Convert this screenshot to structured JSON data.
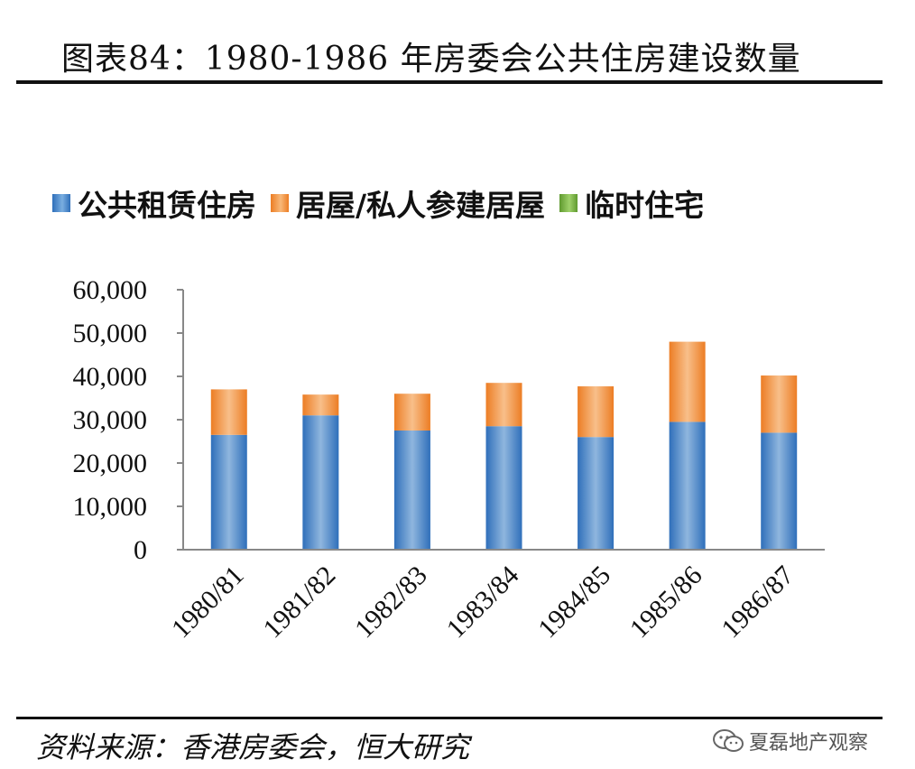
{
  "title": "图表84：1980-1986 年房委会公共住房建设数量",
  "source": "资料来源：香港房委会，恒大研究",
  "watermark": "夏磊地产观察",
  "watermark_icon": "wechat-icon",
  "colors": {
    "rental": "#4a86c8",
    "hos": "#f29a4a",
    "temporary": "#7cb342"
  },
  "chart_data": {
    "type": "bar",
    "stacked": true,
    "categories": [
      "1980/81",
      "1981/82",
      "1982/83",
      "1983/84",
      "1984/85",
      "1985/86",
      "1986/87"
    ],
    "series": [
      {
        "name": "公共租赁住房",
        "values": [
          26500,
          31000,
          27500,
          28500,
          26000,
          29500,
          27000
        ]
      },
      {
        "name": "居屋/私人参建居屋",
        "values": [
          10500,
          4800,
          8500,
          10000,
          11700,
          18500,
          13200
        ]
      },
      {
        "name": "临时住宅",
        "values": [
          0,
          0,
          0,
          0,
          0,
          0,
          0
        ]
      }
    ],
    "ylim": [
      0,
      60000
    ],
    "yticks": [
      "0",
      "10,000",
      "20,000",
      "30,000",
      "40,000",
      "50,000",
      "60,000"
    ],
    "legend_position": "top",
    "grid": false
  }
}
